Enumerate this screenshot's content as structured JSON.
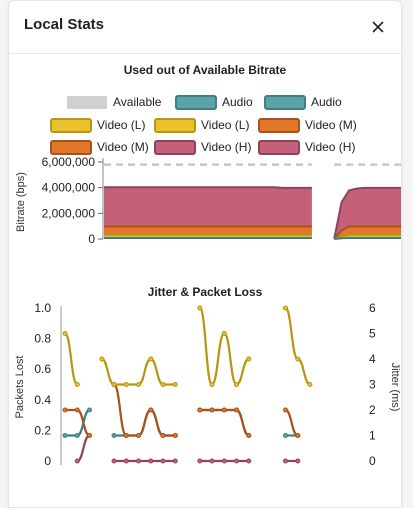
{
  "dialog": {
    "title": "Local Stats",
    "close_icon": "close-icon"
  },
  "colors": {
    "available": "#c8c8c8",
    "audio": "#5ba3a8",
    "audio_stroke": "#3e7e85",
    "video_l": "#e9c12e",
    "video_l_stroke": "#b79611",
    "video_m": "#e2762a",
    "video_m_stroke": "#a8521a",
    "video_h": "#c4607a",
    "video_h_stroke": "#8f4358"
  },
  "chart_data": [
    {
      "type": "area",
      "title": "Used out of Available Bitrate",
      "xlabel": "",
      "ylabel": "Bitrate (bps)",
      "ylim": [
        0,
        6000000
      ],
      "yticks": [
        "0",
        "2,000,000",
        "4,000,000",
        "6,000,000"
      ],
      "yticks_values": [
        0,
        2000000,
        4000000,
        6000000
      ],
      "grid": false,
      "legend_position": "top",
      "legend": [
        {
          "label": "Available",
          "key": "available",
          "blurred": true
        },
        {
          "label": "Audio",
          "key": "audio"
        },
        {
          "label": "Audio",
          "key": "audio"
        },
        {
          "label": "Video (L)",
          "key": "video_l"
        },
        {
          "label": "Video (L)",
          "key": "video_l"
        },
        {
          "label": "Video (M)",
          "key": "video_m"
        },
        {
          "label": "Video (M)",
          "key": "video_m"
        },
        {
          "label": "Video (H)",
          "key": "video_h"
        },
        {
          "label": "Video (H)",
          "key": "video_h"
        }
      ],
      "x": [
        0,
        1,
        2,
        3,
        4,
        5,
        6,
        7,
        8,
        9,
        10,
        11,
        12,
        13,
        14,
        15,
        16,
        17,
        18,
        19,
        20,
        21,
        22,
        23,
        24,
        25,
        26,
        27,
        28,
        29,
        30,
        31,
        32,
        33,
        34,
        35,
        36,
        37,
        38,
        39,
        40
      ],
      "series": [
        {
          "name": "Available",
          "key": "available",
          "values": [
            5800000,
            5800000,
            5800000,
            5800000,
            5800000,
            5800000,
            5800000,
            5800000,
            5800000,
            5800000,
            5800000,
            5800000,
            5800000,
            5800000,
            5800000,
            5800000,
            5800000,
            5800000,
            5800000,
            5800000,
            5800000,
            5800000,
            5800000,
            5800000,
            5800000,
            5800000,
            5800000,
            5800000,
            5800000,
            null,
            null,
            5800000,
            5800000,
            5800000,
            5800000,
            5800000,
            5800000,
            5800000,
            5800000,
            5800000,
            5800000
          ]
        },
        {
          "name": "Audio",
          "key": "audio",
          "values": [
            80000,
            80000,
            80000,
            80000,
            80000,
            80000,
            80000,
            80000,
            80000,
            80000,
            80000,
            80000,
            80000,
            80000,
            80000,
            80000,
            80000,
            80000,
            80000,
            80000,
            80000,
            80000,
            80000,
            80000,
            80000,
            80000,
            80000,
            80000,
            80000,
            null,
            null,
            0,
            60000,
            80000,
            80000,
            80000,
            80000,
            80000,
            80000,
            80000,
            80000
          ]
        },
        {
          "name": "Video (L)",
          "key": "video_l",
          "values": [
            250000,
            250000,
            250000,
            250000,
            250000,
            250000,
            250000,
            250000,
            250000,
            250000,
            250000,
            250000,
            250000,
            250000,
            250000,
            250000,
            250000,
            250000,
            250000,
            250000,
            250000,
            250000,
            250000,
            250000,
            250000,
            250000,
            250000,
            250000,
            250000,
            null,
            null,
            0,
            150000,
            250000,
            250000,
            250000,
            250000,
            250000,
            250000,
            250000,
            250000
          ]
        },
        {
          "name": "Video (M)",
          "key": "video_m",
          "values": [
            650000,
            650000,
            650000,
            650000,
            650000,
            650000,
            650000,
            650000,
            650000,
            650000,
            650000,
            650000,
            650000,
            650000,
            650000,
            650000,
            650000,
            650000,
            650000,
            650000,
            650000,
            650000,
            650000,
            650000,
            650000,
            650000,
            650000,
            650000,
            650000,
            null,
            null,
            0,
            450000,
            650000,
            650000,
            650000,
            650000,
            650000,
            650000,
            650000,
            650000
          ]
        },
        {
          "name": "Video (H)",
          "key": "video_h",
          "values": [
            3050000,
            3050000,
            3050000,
            3050000,
            3050000,
            3050000,
            3050000,
            3050000,
            3050000,
            3050000,
            3050000,
            3050000,
            3050000,
            3050000,
            3050000,
            3050000,
            3050000,
            3050000,
            3050000,
            3050000,
            3050000,
            3050000,
            3050000,
            3050000,
            3000000,
            3000000,
            3000000,
            3000000,
            3000000,
            null,
            null,
            0,
            2200000,
            2800000,
            2950000,
            3000000,
            3000000,
            3000000,
            3000000,
            3000000,
            3000000
          ]
        }
      ]
    },
    {
      "type": "line",
      "title": "Jitter & Packet Loss",
      "xlabel": "",
      "ylabel": "Packets Lost",
      "y2label": "Jitter (ms)",
      "ylim": [
        0,
        1.0
      ],
      "yticks": [
        "0",
        "0.2",
        "0.4",
        "0.6",
        "0.8",
        "1.0"
      ],
      "yticks_values": [
        0,
        0.2,
        0.4,
        0.6,
        0.8,
        1.0
      ],
      "y2lim": [
        0,
        6
      ],
      "y2ticks": [
        "0",
        "1",
        "2",
        "3",
        "4",
        "5",
        "6"
      ],
      "y2ticks_values": [
        0,
        1,
        2,
        3,
        4,
        5,
        6
      ],
      "grid": false,
      "x": [
        0,
        1,
        2,
        3,
        4,
        5,
        6,
        7,
        8,
        9,
        10,
        11,
        12,
        13,
        14,
        15,
        16,
        17,
        18,
        19,
        20,
        21,
        22,
        23,
        24
      ],
      "series": [
        {
          "name": "Video (L)",
          "key": "video_l",
          "axis": "right",
          "values": [
            5,
            3,
            null,
            4,
            3,
            3,
            3,
            4,
            3,
            3,
            null,
            6,
            3,
            5,
            3,
            4,
            null,
            null,
            6,
            4,
            3,
            null,
            null,
            null,
            null
          ]
        },
        {
          "name": "Video (M)",
          "key": "video_m",
          "axis": "right",
          "values": [
            2,
            2,
            1,
            null,
            3,
            1,
            1,
            2,
            1,
            1,
            null,
            2,
            2,
            2,
            2,
            1,
            null,
            null,
            2,
            1,
            null,
            null,
            null,
            null,
            null
          ]
        },
        {
          "name": "Audio",
          "key": "audio",
          "axis": "right",
          "values": [
            1,
            1,
            2,
            null,
            1,
            1,
            1,
            2,
            1,
            1,
            null,
            2,
            2,
            2,
            2,
            1,
            null,
            null,
            1,
            1,
            null,
            null,
            null,
            null,
            null
          ]
        },
        {
          "name": "Video (H)",
          "key": "video_h",
          "axis": "right",
          "values": [
            null,
            0,
            1,
            null,
            0,
            0,
            0,
            0,
            0,
            0,
            null,
            0,
            0,
            0,
            0,
            0,
            null,
            null,
            0,
            0,
            null,
            null,
            null,
            null,
            null
          ]
        }
      ]
    }
  ]
}
